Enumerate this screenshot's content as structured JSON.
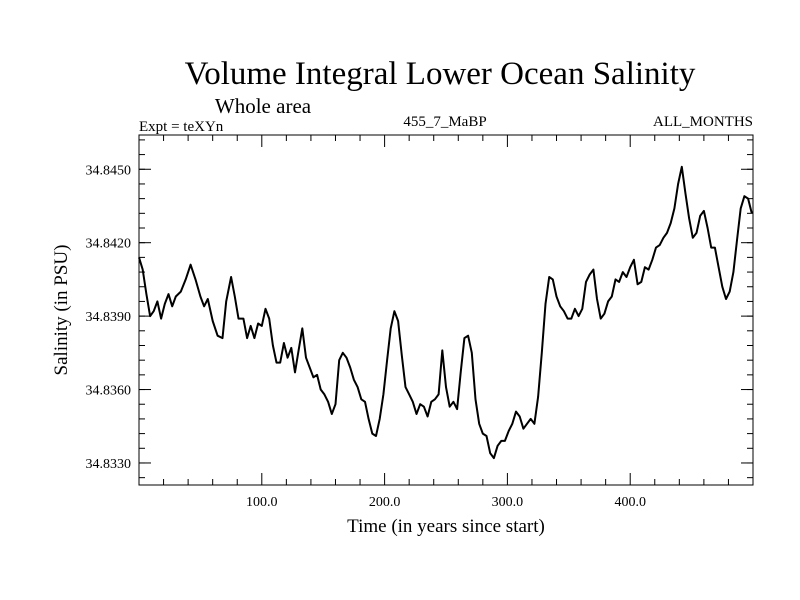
{
  "header": {
    "title": "Volume Integral Lower Ocean Salinity",
    "subtitle": "Whole area",
    "expt": "Expt = teXYn",
    "run_id": "455_7_MaBP",
    "period": "ALL_MONTHS"
  },
  "chart_data": {
    "type": "line",
    "title": "Volume Integral Lower Ocean Salinity",
    "subtitle": "Whole area",
    "xlabel": "Time (in years since start)",
    "ylabel": "Salinity (in PSU)",
    "xlim": [
      0,
      500
    ],
    "ylim": [
      34.8321,
      34.8464
    ],
    "xticks": [
      100,
      200,
      300,
      400
    ],
    "xtick_labels": [
      "100.0",
      "200.0",
      "300.0",
      "400.0"
    ],
    "yticks": [
      34.833,
      34.836,
      34.839,
      34.842,
      34.845
    ],
    "ytick_labels": [
      "34.8330",
      "34.8360",
      "34.8390",
      "34.8420",
      "34.8450"
    ],
    "grid": false,
    "series": [
      {
        "color": "#000000",
        "points": [
          [
            0,
            34.8414
          ],
          [
            3,
            34.8409
          ],
          [
            6,
            34.8399
          ],
          [
            9,
            34.839
          ],
          [
            12,
            34.8392
          ],
          [
            15,
            34.8396
          ],
          [
            18,
            34.8389
          ],
          [
            21,
            34.8395
          ],
          [
            24,
            34.8399
          ],
          [
            27,
            34.8394
          ],
          [
            30,
            34.8398
          ],
          [
            34,
            34.84
          ],
          [
            38,
            34.8405
          ],
          [
            42,
            34.8411
          ],
          [
            46,
            34.8405
          ],
          [
            50,
            34.8398
          ],
          [
            53,
            34.8394
          ],
          [
            56,
            34.8397
          ],
          [
            60,
            34.8388
          ],
          [
            64,
            34.8382
          ],
          [
            68,
            34.8381
          ],
          [
            71,
            34.8396
          ],
          [
            75,
            34.8406
          ],
          [
            78,
            34.8398
          ],
          [
            81,
            34.8389
          ],
          [
            85,
            34.8389
          ],
          [
            88,
            34.8381
          ],
          [
            91,
            34.8386
          ],
          [
            94,
            34.8381
          ],
          [
            97,
            34.8387
          ],
          [
            100,
            34.8386
          ],
          [
            103,
            34.8393
          ],
          [
            106,
            34.8389
          ],
          [
            109,
            34.8378
          ],
          [
            112,
            34.8371
          ],
          [
            115,
            34.8371
          ],
          [
            118,
            34.8379
          ],
          [
            121,
            34.8373
          ],
          [
            124,
            34.8377
          ],
          [
            127,
            34.8367
          ],
          [
            130,
            34.8376
          ],
          [
            133,
            34.8385
          ],
          [
            136,
            34.8373
          ],
          [
            139,
            34.8369
          ],
          [
            142,
            34.8365
          ],
          [
            145,
            34.8366
          ],
          [
            148,
            34.836
          ],
          [
            151,
            34.8358
          ],
          [
            154,
            34.8355
          ],
          [
            157,
            34.835
          ],
          [
            160,
            34.8354
          ],
          [
            163,
            34.8372
          ],
          [
            166,
            34.8375
          ],
          [
            169,
            34.8373
          ],
          [
            172,
            34.8369
          ],
          [
            175,
            34.8364
          ],
          [
            178,
            34.8361
          ],
          [
            181,
            34.8356
          ],
          [
            184,
            34.8355
          ],
          [
            187,
            34.8348
          ],
          [
            190,
            34.8342
          ],
          [
            193,
            34.8341
          ],
          [
            196,
            34.8348
          ],
          [
            199,
            34.8358
          ],
          [
            202,
            34.8372
          ],
          [
            205,
            34.8385
          ],
          [
            208,
            34.8392
          ],
          [
            211,
            34.8388
          ],
          [
            214,
            34.8374
          ],
          [
            217,
            34.8361
          ],
          [
            220,
            34.8358
          ],
          [
            223,
            34.8355
          ],
          [
            226,
            34.835
          ],
          [
            229,
            34.8354
          ],
          [
            232,
            34.8353
          ],
          [
            235,
            34.8349
          ],
          [
            238,
            34.8355
          ],
          [
            241,
            34.8356
          ],
          [
            244,
            34.8358
          ],
          [
            247,
            34.8376
          ],
          [
            250,
            34.8361
          ],
          [
            253,
            34.8353
          ],
          [
            256,
            34.8355
          ],
          [
            259,
            34.8352
          ],
          [
            262,
            34.8367
          ],
          [
            265,
            34.8381
          ],
          [
            268,
            34.8382
          ],
          [
            271,
            34.8375
          ],
          [
            274,
            34.8356
          ],
          [
            277,
            34.8346
          ],
          [
            280,
            34.8342
          ],
          [
            283,
            34.8341
          ],
          [
            286,
            34.8334
          ],
          [
            289,
            34.8332
          ],
          [
            292,
            34.8337
          ],
          [
            295,
            34.8339
          ],
          [
            298,
            34.8339
          ],
          [
            301,
            34.8343
          ],
          [
            304,
            34.8346
          ],
          [
            307,
            34.8351
          ],
          [
            310,
            34.8349
          ],
          [
            313,
            34.8344
          ],
          [
            316,
            34.8346
          ],
          [
            319,
            34.8348
          ],
          [
            322,
            34.8346
          ],
          [
            325,
            34.8357
          ],
          [
            328,
            34.8375
          ],
          [
            331,
            34.8395
          ],
          [
            334,
            34.8406
          ],
          [
            337,
            34.8405
          ],
          [
            340,
            34.8398
          ],
          [
            343,
            34.8394
          ],
          [
            346,
            34.8392
          ],
          [
            349,
            34.8389
          ],
          [
            352,
            34.8389
          ],
          [
            355,
            34.8393
          ],
          [
            358,
            34.839
          ],
          [
            361,
            34.8393
          ],
          [
            364,
            34.8404
          ],
          [
            367,
            34.8407
          ],
          [
            370,
            34.8409
          ],
          [
            373,
            34.8397
          ],
          [
            376,
            34.8389
          ],
          [
            379,
            34.8391
          ],
          [
            382,
            34.8396
          ],
          [
            385,
            34.8398
          ],
          [
            388,
            34.8405
          ],
          [
            391,
            34.8404
          ],
          [
            394,
            34.8408
          ],
          [
            397,
            34.8406
          ],
          [
            400,
            34.841
          ],
          [
            403,
            34.8413
          ],
          [
            406,
            34.8403
          ],
          [
            409,
            34.8404
          ],
          [
            412,
            34.841
          ],
          [
            415,
            34.8409
          ],
          [
            418,
            34.8413
          ],
          [
            421,
            34.8418
          ],
          [
            424,
            34.8419
          ],
          [
            427,
            34.8422
          ],
          [
            430,
            34.8424
          ],
          [
            433,
            34.8428
          ],
          [
            436,
            34.8434
          ],
          [
            439,
            34.8444
          ],
          [
            442,
            34.8451
          ],
          [
            445,
            34.844
          ],
          [
            448,
            34.843
          ],
          [
            451,
            34.8422
          ],
          [
            454,
            34.8424
          ],
          [
            457,
            34.8431
          ],
          [
            460,
            34.8433
          ],
          [
            463,
            34.8426
          ],
          [
            466,
            34.8418
          ],
          [
            469,
            34.8418
          ],
          [
            472,
            34.841
          ],
          [
            475,
            34.8402
          ],
          [
            478,
            34.8397
          ],
          [
            481,
            34.84
          ],
          [
            484,
            34.8408
          ],
          [
            487,
            34.8421
          ],
          [
            490,
            34.8434
          ],
          [
            493,
            34.8439
          ],
          [
            496,
            34.8438
          ],
          [
            499,
            34.8432
          ]
        ]
      }
    ]
  }
}
